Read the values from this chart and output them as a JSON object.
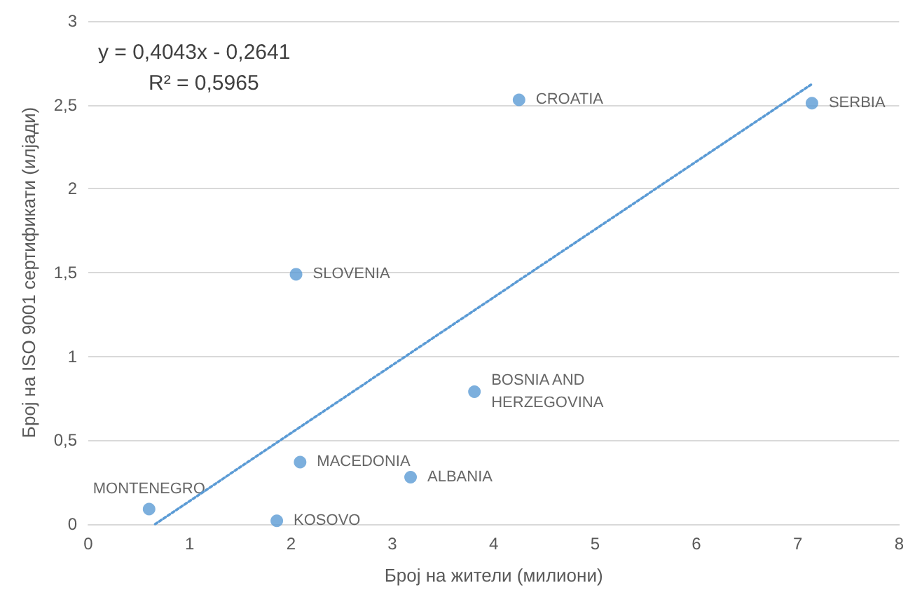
{
  "chart_data": {
    "type": "scatter",
    "xlabel": "Број на жители (милиони)",
    "ylabel": "Број на ISO 9001 сертификати (илјади)",
    "series": [
      {
        "color": "#5b9bd5",
        "marker": "circle",
        "x": [
          0.6,
          1.86,
          2.09,
          2.05,
          3.18,
          3.81,
          4.25,
          7.14
        ],
        "values": [
          0.09,
          0.02,
          0.37,
          1.49,
          0.28,
          0.79,
          2.53,
          2.51
        ]
      },
      {
        "type": "line",
        "color": "#5b9bd5",
        "line_style": "dotted",
        "marker": "none",
        "x": [
          0.66,
          7.13
        ],
        "values": [
          0.0,
          2.62
        ]
      }
    ],
    "annotations": [
      "y = 0,4043x - 0,2641",
      "R² = 0,5965",
      {
        "text": "MONTENEGRO",
        "x": 0.6,
        "y": 0.09
      },
      {
        "text": "KOSOVO",
        "x": 1.86,
        "y": 0.02
      },
      {
        "text": "MACEDONIA",
        "x": 2.09,
        "y": 0.37
      },
      {
        "text": "SLOVENIA",
        "x": 2.05,
        "y": 1.49
      },
      {
        "text": "ALBANIA",
        "x": 3.18,
        "y": 0.28
      },
      {
        "text": "BOSNIA AND\nHERZEGOVINA",
        "x": 3.81,
        "y": 0.79
      },
      {
        "text": "CROATIA",
        "x": 4.25,
        "y": 2.53
      },
      {
        "text": "SERBIA",
        "x": 7.14,
        "y": 2.51
      }
    ],
    "xlim": [
      0,
      8
    ],
    "xticks": [
      0,
      1,
      2,
      3,
      4,
      5,
      6,
      7,
      8
    ],
    "ylim": [
      0,
      3
    ],
    "yticks": [
      0,
      {
        "value": 0.5,
        "label": "0,5"
      },
      1,
      {
        "value": 1.5,
        "label": "1,5"
      },
      2,
      {
        "value": 2.5,
        "label": "2,5"
      },
      3
    ],
    "grid": "y"
  }
}
